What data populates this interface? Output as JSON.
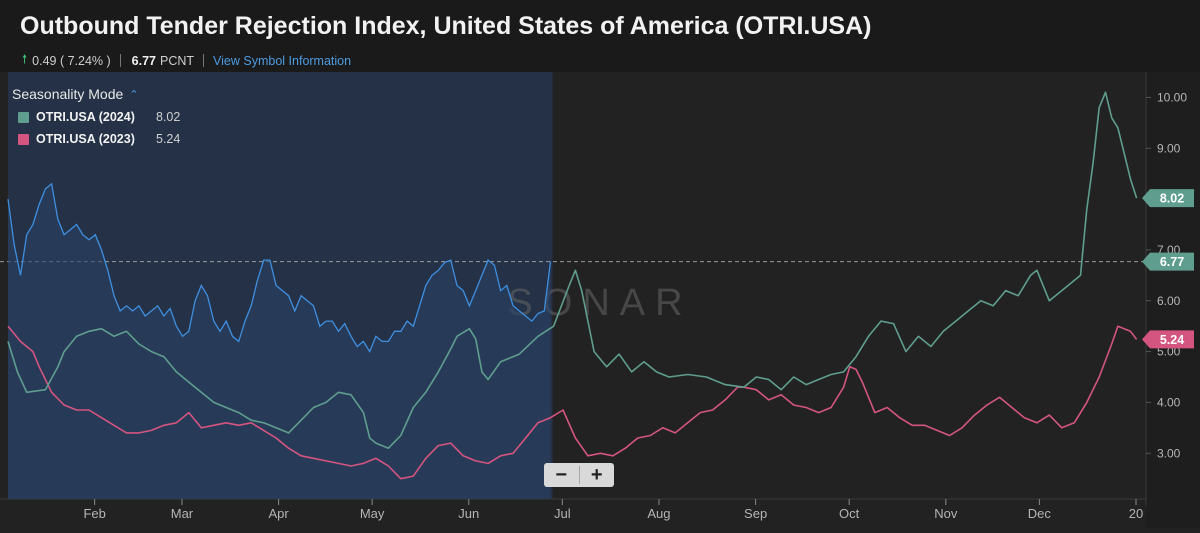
{
  "header": {
    "title": "Outbound Tender Rejection Index, United States of America (OTRI.USA)",
    "change": "0.49 ( 7.24% )",
    "value": "6.77",
    "unit": "PCNT",
    "link": "View Symbol Information"
  },
  "legend": {
    "mode_label": "Seasonality Mode",
    "items": [
      {
        "name": "OTRI.USA (2024)",
        "value": "8.02",
        "color": "#5f9e8e"
      },
      {
        "name": "OTRI.USA (2023)",
        "value": "5.24",
        "color": "#d4557f"
      }
    ]
  },
  "watermark": "SONAR",
  "zoom": {
    "minus": "−",
    "plus": "+"
  },
  "chart_data": {
    "type": "line",
    "x_ticks": [
      "Feb",
      "Mar",
      "Apr",
      "May",
      "Jun",
      "Jul",
      "Aug",
      "Sep",
      "Oct",
      "Nov",
      "Dec",
      "20"
    ],
    "y_ticks": [
      "3.00",
      "4.00",
      "5.00",
      "6.00",
      "7.00",
      "8.00",
      "9.00",
      "10.00"
    ],
    "ylim": [
      2.1,
      10.5
    ],
    "xlim": [
      0,
      365
    ],
    "current_value_line": 6.77,
    "badges": [
      {
        "value": "8.02",
        "color": "#5f9e8e"
      },
      {
        "value": "6.77",
        "color": "#5f9e8e"
      },
      {
        "value": "5.24",
        "color": "#d4557f"
      }
    ],
    "series": [
      {
        "name": "OTRI.USA (2024)",
        "color": "#5f9e8e",
        "points": [
          [
            0,
            5.2
          ],
          [
            3,
            4.6
          ],
          [
            6,
            4.2
          ],
          [
            12,
            4.25
          ],
          [
            16,
            4.7
          ],
          [
            18,
            5.0
          ],
          [
            22,
            5.3
          ],
          [
            26,
            5.4
          ],
          [
            30,
            5.45
          ],
          [
            34,
            5.3
          ],
          [
            38,
            5.4
          ],
          [
            42,
            5.15
          ],
          [
            46,
            5.0
          ],
          [
            50,
            4.9
          ],
          [
            54,
            4.6
          ],
          [
            58,
            4.4
          ],
          [
            62,
            4.2
          ],
          [
            66,
            4.0
          ],
          [
            70,
            3.9
          ],
          [
            74,
            3.8
          ],
          [
            78,
            3.65
          ],
          [
            82,
            3.6
          ],
          [
            86,
            3.5
          ],
          [
            90,
            3.4
          ],
          [
            94,
            3.65
          ],
          [
            98,
            3.9
          ],
          [
            102,
            4.0
          ],
          [
            106,
            4.2
          ],
          [
            110,
            4.15
          ],
          [
            114,
            3.8
          ],
          [
            116,
            3.3
          ],
          [
            118,
            3.2
          ],
          [
            122,
            3.1
          ],
          [
            126,
            3.35
          ],
          [
            130,
            3.9
          ],
          [
            134,
            4.2
          ],
          [
            138,
            4.6
          ],
          [
            142,
            5.05
          ],
          [
            144,
            5.3
          ],
          [
            148,
            5.45
          ],
          [
            150,
            5.25
          ],
          [
            152,
            4.6
          ],
          [
            154,
            4.45
          ],
          [
            158,
            4.8
          ],
          [
            164,
            4.95
          ],
          [
            170,
            5.3
          ],
          [
            175,
            5.5
          ],
          [
            180,
            6.3
          ],
          [
            182,
            6.6
          ],
          [
            184,
            6.2
          ],
          [
            188,
            5.0
          ],
          [
            192,
            4.7
          ],
          [
            196,
            4.95
          ],
          [
            200,
            4.6
          ],
          [
            204,
            4.8
          ],
          [
            208,
            4.6
          ],
          [
            212,
            4.5
          ],
          [
            218,
            4.55
          ],
          [
            224,
            4.5
          ],
          [
            230,
            4.35
          ],
          [
            236,
            4.3
          ],
          [
            240,
            4.5
          ],
          [
            244,
            4.45
          ],
          [
            248,
            4.25
          ],
          [
            252,
            4.5
          ],
          [
            256,
            4.35
          ],
          [
            260,
            4.45
          ],
          [
            264,
            4.55
          ],
          [
            268,
            4.6
          ],
          [
            272,
            4.9
          ],
          [
            276,
            5.3
          ],
          [
            280,
            5.6
          ],
          [
            284,
            5.55
          ],
          [
            288,
            5.0
          ],
          [
            292,
            5.3
          ],
          [
            296,
            5.1
          ],
          [
            300,
            5.4
          ],
          [
            304,
            5.6
          ],
          [
            308,
            5.8
          ],
          [
            312,
            6.0
          ],
          [
            316,
            5.9
          ],
          [
            320,
            6.2
          ],
          [
            324,
            6.1
          ],
          [
            328,
            6.5
          ],
          [
            330,
            6.6
          ],
          [
            334,
            6.0
          ],
          [
            338,
            6.2
          ],
          [
            342,
            6.4
          ],
          [
            344,
            6.5
          ],
          [
            346,
            7.8
          ],
          [
            348,
            8.7
          ],
          [
            350,
            9.8
          ],
          [
            352,
            10.1
          ],
          [
            354,
            9.6
          ],
          [
            356,
            9.4
          ],
          [
            358,
            8.9
          ],
          [
            360,
            8.4
          ],
          [
            362,
            8.02
          ]
        ]
      },
      {
        "name": "OTRI.USA (2023)",
        "color": "#d4557f",
        "points": [
          [
            0,
            5.5
          ],
          [
            4,
            5.2
          ],
          [
            8,
            5.0
          ],
          [
            10,
            4.7
          ],
          [
            14,
            4.2
          ],
          [
            18,
            3.95
          ],
          [
            22,
            3.85
          ],
          [
            26,
            3.85
          ],
          [
            30,
            3.7
          ],
          [
            34,
            3.55
          ],
          [
            38,
            3.4
          ],
          [
            42,
            3.4
          ],
          [
            46,
            3.45
          ],
          [
            50,
            3.55
          ],
          [
            54,
            3.6
          ],
          [
            58,
            3.8
          ],
          [
            62,
            3.5
          ],
          [
            66,
            3.55
          ],
          [
            70,
            3.6
          ],
          [
            74,
            3.55
          ],
          [
            78,
            3.6
          ],
          [
            82,
            3.45
          ],
          [
            86,
            3.3
          ],
          [
            90,
            3.1
          ],
          [
            94,
            2.95
          ],
          [
            98,
            2.9
          ],
          [
            102,
            2.85
          ],
          [
            106,
            2.8
          ],
          [
            110,
            2.75
          ],
          [
            114,
            2.8
          ],
          [
            118,
            2.9
          ],
          [
            122,
            2.75
          ],
          [
            126,
            2.5
          ],
          [
            130,
            2.55
          ],
          [
            134,
            2.9
          ],
          [
            138,
            3.15
          ],
          [
            142,
            3.2
          ],
          [
            146,
            2.95
          ],
          [
            150,
            2.85
          ],
          [
            154,
            2.8
          ],
          [
            158,
            2.95
          ],
          [
            162,
            3.0
          ],
          [
            166,
            3.3
          ],
          [
            170,
            3.6
          ],
          [
            174,
            3.7
          ],
          [
            178,
            3.85
          ],
          [
            182,
            3.3
          ],
          [
            186,
            2.95
          ],
          [
            190,
            3.0
          ],
          [
            194,
            2.95
          ],
          [
            198,
            3.1
          ],
          [
            202,
            3.3
          ],
          [
            206,
            3.35
          ],
          [
            210,
            3.5
          ],
          [
            214,
            3.4
          ],
          [
            218,
            3.6
          ],
          [
            222,
            3.8
          ],
          [
            226,
            3.85
          ],
          [
            230,
            4.05
          ],
          [
            234,
            4.3
          ],
          [
            236,
            4.3
          ],
          [
            240,
            4.25
          ],
          [
            244,
            4.05
          ],
          [
            248,
            4.15
          ],
          [
            252,
            3.95
          ],
          [
            256,
            3.9
          ],
          [
            260,
            3.8
          ],
          [
            264,
            3.9
          ],
          [
            268,
            4.3
          ],
          [
            270,
            4.7
          ],
          [
            272,
            4.65
          ],
          [
            274,
            4.4
          ],
          [
            278,
            3.8
          ],
          [
            282,
            3.9
          ],
          [
            286,
            3.7
          ],
          [
            290,
            3.55
          ],
          [
            294,
            3.55
          ],
          [
            298,
            3.45
          ],
          [
            302,
            3.35
          ],
          [
            306,
            3.5
          ],
          [
            310,
            3.75
          ],
          [
            314,
            3.95
          ],
          [
            318,
            4.1
          ],
          [
            322,
            3.9
          ],
          [
            326,
            3.7
          ],
          [
            330,
            3.6
          ],
          [
            334,
            3.75
          ],
          [
            338,
            3.5
          ],
          [
            342,
            3.6
          ],
          [
            346,
            4.0
          ],
          [
            350,
            4.5
          ],
          [
            354,
            5.15
          ],
          [
            356,
            5.5
          ],
          [
            360,
            5.4
          ],
          [
            362,
            5.24
          ]
        ]
      },
      {
        "name": "shaded",
        "color": "#3f8fe0",
        "points": [
          [
            0,
            8.0
          ],
          [
            2,
            7.1
          ],
          [
            4,
            6.5
          ],
          [
            6,
            7.3
          ],
          [
            8,
            7.5
          ],
          [
            10,
            7.9
          ],
          [
            12,
            8.2
          ],
          [
            14,
            8.3
          ],
          [
            16,
            7.6
          ],
          [
            18,
            7.3
          ],
          [
            20,
            7.4
          ],
          [
            22,
            7.5
          ],
          [
            24,
            7.3
          ],
          [
            26,
            7.2
          ],
          [
            28,
            7.3
          ],
          [
            30,
            7.0
          ],
          [
            32,
            6.6
          ],
          [
            34,
            6.1
          ],
          [
            36,
            5.8
          ],
          [
            38,
            5.9
          ],
          [
            40,
            5.8
          ],
          [
            42,
            5.9
          ],
          [
            44,
            5.7
          ],
          [
            46,
            5.8
          ],
          [
            48,
            5.9
          ],
          [
            50,
            5.7
          ],
          [
            52,
            5.85
          ],
          [
            54,
            5.5
          ],
          [
            56,
            5.3
          ],
          [
            58,
            5.4
          ],
          [
            60,
            6.0
          ],
          [
            62,
            6.3
          ],
          [
            64,
            6.1
          ],
          [
            66,
            5.6
          ],
          [
            68,
            5.4
          ],
          [
            70,
            5.6
          ],
          [
            72,
            5.3
          ],
          [
            74,
            5.2
          ],
          [
            76,
            5.6
          ],
          [
            78,
            5.9
          ],
          [
            80,
            6.4
          ],
          [
            82,
            6.8
          ],
          [
            84,
            6.8
          ],
          [
            86,
            6.3
          ],
          [
            88,
            6.2
          ],
          [
            90,
            6.1
          ],
          [
            92,
            5.8
          ],
          [
            94,
            6.1
          ],
          [
            96,
            6.0
          ],
          [
            98,
            5.9
          ],
          [
            100,
            5.5
          ],
          [
            102,
            5.6
          ],
          [
            104,
            5.6
          ],
          [
            106,
            5.4
          ],
          [
            108,
            5.55
          ],
          [
            110,
            5.3
          ],
          [
            112,
            5.1
          ],
          [
            114,
            5.2
          ],
          [
            116,
            5.0
          ],
          [
            118,
            5.3
          ],
          [
            120,
            5.2
          ],
          [
            122,
            5.2
          ],
          [
            124,
            5.4
          ],
          [
            126,
            5.4
          ],
          [
            128,
            5.6
          ],
          [
            130,
            5.5
          ],
          [
            132,
            5.9
          ],
          [
            134,
            6.3
          ],
          [
            136,
            6.5
          ],
          [
            138,
            6.6
          ],
          [
            140,
            6.75
          ],
          [
            142,
            6.8
          ],
          [
            144,
            6.3
          ],
          [
            146,
            6.2
          ],
          [
            148,
            5.9
          ],
          [
            150,
            6.2
          ],
          [
            152,
            6.5
          ],
          [
            154,
            6.8
          ],
          [
            156,
            6.7
          ],
          [
            158,
            6.2
          ],
          [
            160,
            6.3
          ],
          [
            162,
            5.9
          ],
          [
            164,
            5.8
          ],
          [
            166,
            5.7
          ],
          [
            168,
            5.6
          ],
          [
            170,
            5.75
          ],
          [
            172,
            5.8
          ],
          [
            174,
            6.77
          ]
        ]
      }
    ]
  }
}
